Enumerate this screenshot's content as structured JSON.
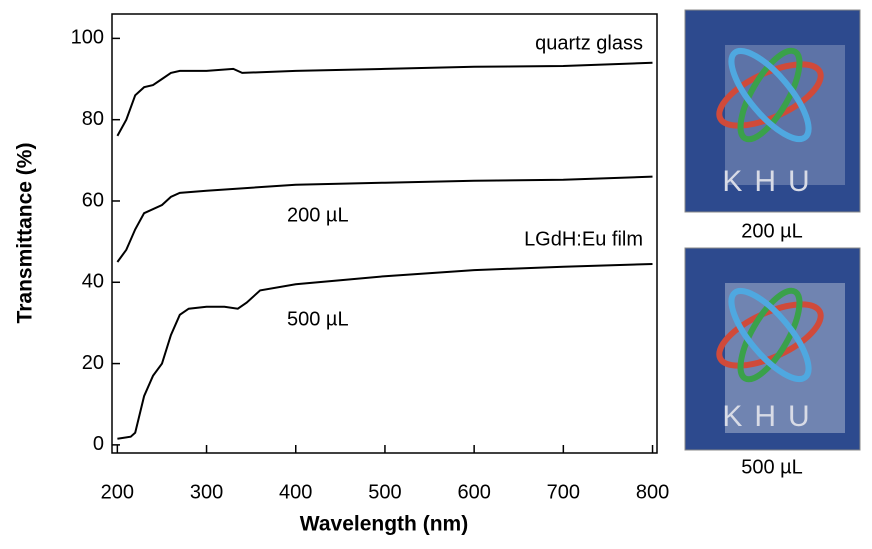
{
  "chart_data": {
    "type": "line",
    "xlabel": "Wavelength (nm)",
    "ylabel": "Transmittance (%)",
    "xlim": [
      194,
      805
    ],
    "ylim": [
      -2,
      106
    ],
    "xticks": [
      200,
      300,
      400,
      500,
      600,
      700,
      800
    ],
    "yticks": [
      0,
      20,
      40,
      60,
      80,
      100
    ],
    "series": [
      {
        "name": "quartz glass",
        "color": "#000000",
        "x": [
          200,
          210,
          220,
          230,
          240,
          250,
          260,
          270,
          300,
          330,
          340,
          400,
          500,
          600,
          700,
          800
        ],
        "values": [
          76,
          80,
          86,
          88,
          88.5,
          90,
          91.5,
          92,
          92,
          92.5,
          91.5,
          92,
          92.5,
          93,
          93.2,
          94
        ]
      },
      {
        "name": "200 µL",
        "color": "#000000",
        "x": [
          200,
          210,
          220,
          230,
          250,
          260,
          270,
          300,
          400,
          500,
          600,
          700,
          800
        ],
        "values": [
          45,
          48,
          53,
          57,
          59,
          61,
          62,
          62.5,
          64,
          64.5,
          65,
          65.2,
          66
        ]
      },
      {
        "name": "500 µL",
        "color": "#000000",
        "x": [
          200,
          215,
          220,
          230,
          240,
          250,
          260,
          270,
          280,
          300,
          320,
          335,
          345,
          360,
          400,
          450,
          500,
          600,
          700,
          800
        ],
        "values": [
          1.5,
          2,
          3,
          12,
          17,
          20,
          27,
          32,
          33.5,
          34,
          34,
          33.5,
          35,
          38,
          39.5,
          40.5,
          41.5,
          43,
          43.8,
          44.5
        ]
      }
    ],
    "annotations": [
      "LGdH:Eu film"
    ],
    "photos": [
      {
        "caption": "200 µL",
        "logo": "KHU"
      },
      {
        "caption": "500 µL",
        "logo": "KHU"
      }
    ]
  }
}
